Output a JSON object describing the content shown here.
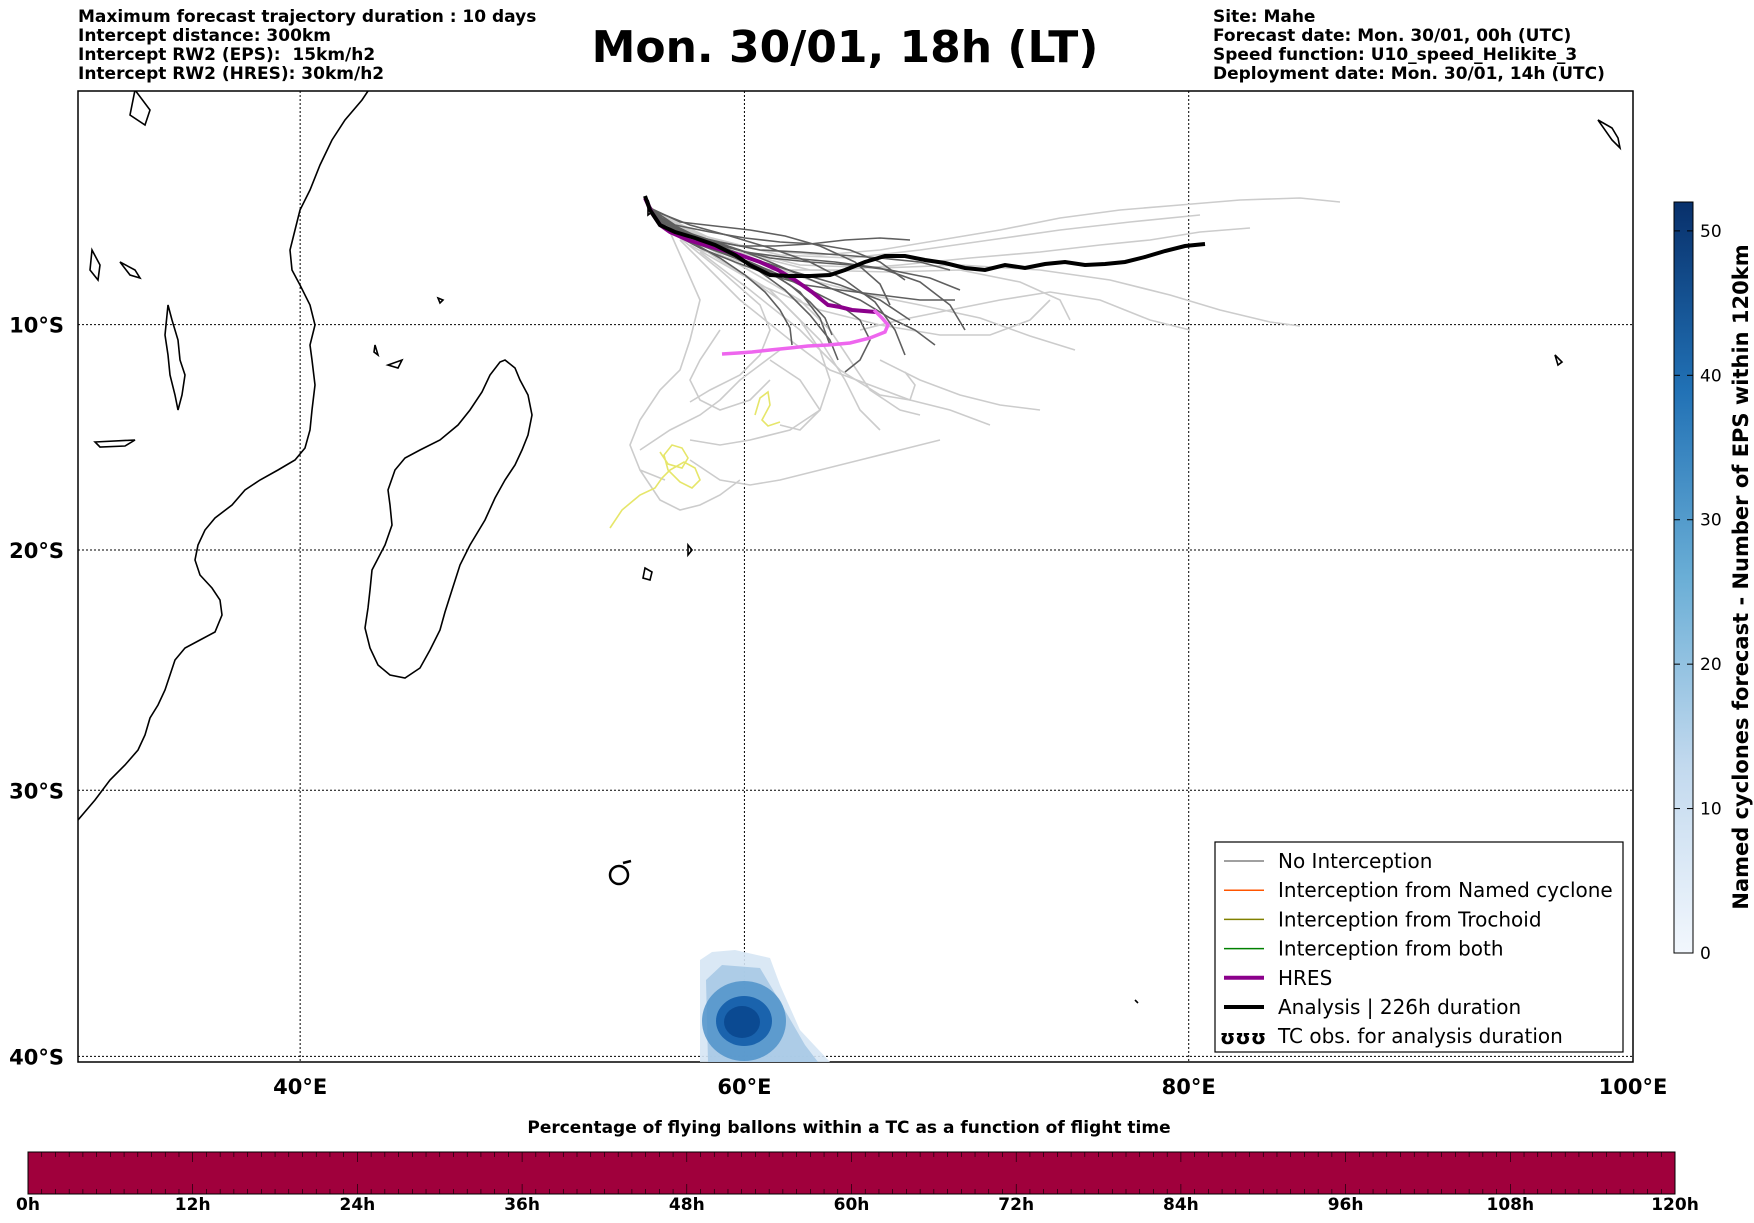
{
  "header_left": {
    "line1": "Maximum forecast trajectory duration : 10 days",
    "line2": "Intercept distance: 300km",
    "line3": "Intercept RW2 (EPS):  15km/h2",
    "line4": "Intercept RW2 (HRES): 30km/h2"
  },
  "title": "Mon. 30/01, 18h (LT)",
  "header_right": {
    "line1": "Site: Mahe",
    "line2": "Forecast date: Mon. 30/01, 00h (UTC)",
    "line3": "Speed function: U10_speed_Helikite_3",
    "line4": "Deployment date: Mon. 30/01, 14h (UTC)"
  },
  "map": {
    "lon_range": [
      30,
      100
    ],
    "lat_range": [
      -40.2,
      0.7
    ],
    "lon_ticks": [
      {
        "value": 40,
        "label": "40°E"
      },
      {
        "value": 60,
        "label": "60°E"
      },
      {
        "value": 80,
        "label": "80°E"
      },
      {
        "value": 100,
        "label": "100°E"
      }
    ],
    "lat_ticks": [
      {
        "value": -10,
        "label": "10°S"
      },
      {
        "value": -20,
        "label": "20°S"
      },
      {
        "value": -30,
        "label": "30°S"
      },
      {
        "value": -40,
        "label": "40°S"
      }
    ],
    "grid": "dotted",
    "deployment_site": "Mahe",
    "tc_symbol_position": {
      "lon": 54.4,
      "lat": -33.6
    },
    "colors": {
      "eps_no_interception_dark": "#5a5a5a",
      "eps_no_interception_light": "#cccccc",
      "hres": "#8b008b",
      "hres_late": "#ee66ee",
      "analysis": "#000000",
      "yellow_tracks": "#e8e870",
      "named_cyclone": "#ff5500",
      "trochoid": "#808000",
      "both": "#008000"
    }
  },
  "legend": {
    "entries": [
      {
        "label": "No Interception",
        "color": "#808080",
        "width": 1.5
      },
      {
        "label": "Interception from Named cyclone",
        "color": "#ff5500",
        "width": 1.5
      },
      {
        "label": "Interception from Trochoid",
        "color": "#808000",
        "width": 1.5
      },
      {
        "label": "Interception from both",
        "color": "#008000",
        "width": 1.5
      },
      {
        "label": "HRES",
        "color": "#8b008b",
        "width": 4
      },
      {
        "label": "Analysis | 226h duration",
        "color": "#000000",
        "width": 4
      },
      {
        "label": "TC obs. for analysis duration",
        "color": "#000000",
        "symbol": "ʊʊʊ"
      }
    ]
  },
  "colorbar": {
    "title": "Named cyclones forecast - Number of EPS within 120km",
    "ticks": [
      "0",
      "10",
      "20",
      "30",
      "40",
      "50"
    ],
    "range": [
      0,
      52
    ]
  },
  "bottom_bar": {
    "title": "Percentage of flying ballons within a TC as a function of flight time",
    "color": "#a0003c",
    "ticks": [
      "0h",
      "12h",
      "24h",
      "36h",
      "48h",
      "60h",
      "72h",
      "84h",
      "96h",
      "108h",
      "120h"
    ]
  }
}
